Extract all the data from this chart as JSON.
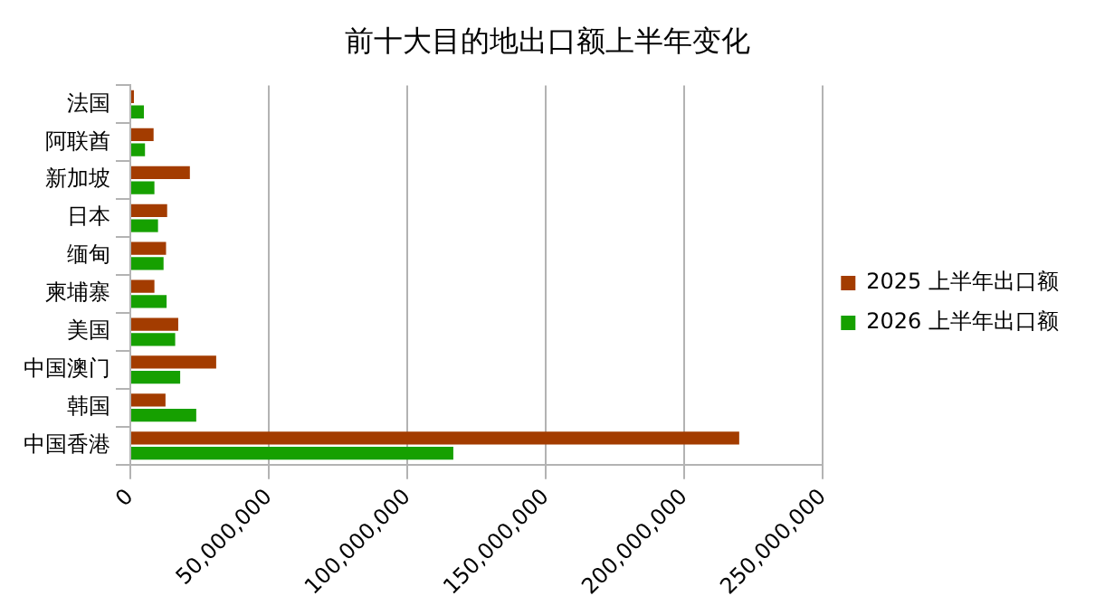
{
  "chart_data": {
    "type": "bar",
    "orientation": "horizontal",
    "title": "前十大目的地出口额上半年变化",
    "categories": [
      "法国",
      "阿联酋",
      "新加坡",
      "日本",
      "缅甸",
      "柬埔寨",
      "美国",
      "中国澳门",
      "韩国",
      "中国香港"
    ],
    "series": [
      {
        "name": "2025 上半年出口额",
        "color": "#a33c00",
        "values": [
          1300000,
          8400000,
          21500000,
          13300000,
          12900000,
          8700000,
          17300000,
          31000000,
          12700000,
          219800000
        ]
      },
      {
        "name": "2026 上半年出口额",
        "color": "#16a000",
        "values": [
          4900000,
          5300000,
          8700000,
          10000000,
          12000000,
          13100000,
          16200000,
          18000000,
          23800000,
          116600000
        ]
      }
    ],
    "xlim": [
      0,
      250000000
    ],
    "xticks": [
      {
        "value": 0,
        "label": "0"
      },
      {
        "value": 50000000,
        "label": "50,000,000"
      },
      {
        "value": 100000000,
        "label": "100,000,000"
      },
      {
        "value": 150000000,
        "label": "150,000,000"
      },
      {
        "value": 200000000,
        "label": "200,000,000"
      },
      {
        "value": 250000000,
        "label": "250,000,000"
      }
    ],
    "grid": "x",
    "legend": "right"
  }
}
